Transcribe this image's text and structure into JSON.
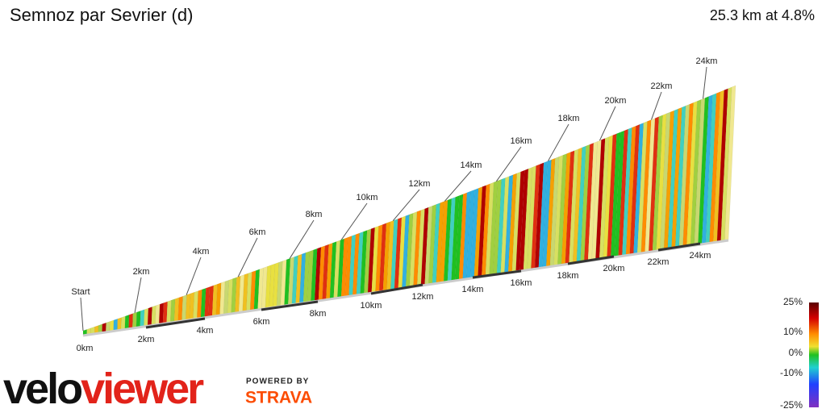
{
  "header": {
    "title": "Semnoz par Sevrier (d)",
    "summary": "25.3 km at 4.8%"
  },
  "top_markers": [
    "Start",
    "2km",
    "4km",
    "6km",
    "8km",
    "10km",
    "12km",
    "14km",
    "16km",
    "18km",
    "20km",
    "22km",
    "24km"
  ],
  "bottom_markers": [
    "0km",
    "2km",
    "4km",
    "6km",
    "8km",
    "10km",
    "12km",
    "14km",
    "16km",
    "18km",
    "20km",
    "22km",
    "24km"
  ],
  "legend": [
    "25%",
    "10%",
    "0%",
    "-10%",
    "-25%"
  ],
  "logo": {
    "velo": "velo",
    "viewer": "viewer",
    "powered": "POWERED BY",
    "strava": "STRAVA"
  }
}
